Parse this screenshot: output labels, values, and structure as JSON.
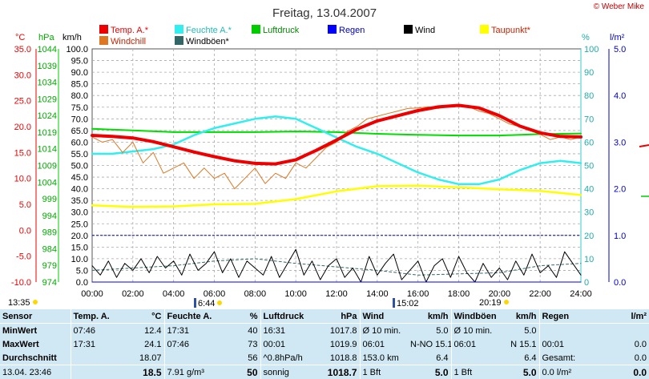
{
  "title": "Freitag, 13.04.2007",
  "copyright": "© Weber Mike",
  "colors": {
    "temp": "#ee0000",
    "windchill": "#dd7722",
    "humidity": "#33eeee",
    "pressure": "#00dd00",
    "rain": "#0000ff",
    "wind": "#000000",
    "gust": "#336666",
    "dewpoint": "#ffff00"
  },
  "legend": [
    {
      "label": "Temp. A.*",
      "color": "#ee0000",
      "text_color": "#ee0000"
    },
    {
      "label": "Feuchte A.*",
      "color": "#33eeee",
      "text_color": "#22bbbb"
    },
    {
      "label": "Luftdruck",
      "color": "#00cc00",
      "text_color": "#008800"
    },
    {
      "label": "Regen",
      "color": "#0000ff",
      "text_color": "#0000cc"
    },
    {
      "label": "Wind",
      "color": "#000000",
      "text_color": "#000000"
    },
    {
      "label": "Taupunkt*",
      "color": "#ffff00",
      "text_color": "#cc2200"
    },
    {
      "label": "Windchill",
      "color": "#dd7722",
      "text_color": "#cc2200"
    },
    {
      "label": "Windböen*",
      "color": "#336666",
      "text_color": "#000000"
    }
  ],
  "axes": {
    "temp_unit": "°C",
    "pressure_unit": "hPa",
    "wind_unit": "km/h",
    "humidity_unit": "%",
    "rain_unit": "l/m²"
  },
  "markers": {
    "sunrise": "6:44",
    "sunset": "20:19",
    "moonrise": "13:35",
    "moonset": "15:02"
  },
  "chart_data": {
    "type": "line",
    "title": "Freitag, 13.04.2007",
    "x_ticks": [
      "00:00",
      "02:00",
      "04:00",
      "06:00",
      "08:00",
      "10:00",
      "12:00",
      "14:00",
      "16:00",
      "18:00",
      "20:00",
      "22:00",
      "24:00"
    ],
    "x_range": [
      0,
      24
    ],
    "axes_ticks": {
      "temp": [
        "35.0",
        "30.0",
        "25.0",
        "20.0",
        "15.0",
        "10.0",
        "5.0",
        "0.0",
        "-5.0",
        "-10.0"
      ],
      "pressure": [
        "1044",
        "1039",
        "1034",
        "1029",
        "1024",
        "1019",
        "1014",
        "1009",
        "1004",
        "999",
        "994",
        "989",
        "984",
        "979",
        "974"
      ],
      "wind": [
        "100.0",
        "95.0",
        "90.0",
        "85.0",
        "80.0",
        "75.0",
        "70.0",
        "65.0",
        "60.0",
        "55.0",
        "50.0",
        "45.0",
        "40.0",
        "35.0",
        "30.0",
        "25.0",
        "20.0",
        "15.0",
        "10.0",
        "5.0",
        "0.0"
      ],
      "humidity": [
        "100",
        "90",
        "80",
        "70",
        "60",
        "50",
        "40",
        "30",
        "20",
        "10",
        "0"
      ],
      "rain": [
        "5.0",
        "4.0",
        "3.0",
        "2.0",
        "1.0",
        "0.0"
      ]
    },
    "ylim": {
      "temp": [
        -10,
        35
      ],
      "pressure": [
        974,
        1044
      ],
      "wind": [
        0,
        100
      ],
      "humidity": [
        0,
        100
      ],
      "rain": [
        0,
        5
      ]
    },
    "series": [
      {
        "name": "Temp. A.*",
        "axis": "temp",
        "x": [
          0,
          1,
          2,
          3,
          4,
          5,
          6,
          7,
          8,
          9,
          10,
          11,
          12,
          13,
          14,
          15,
          16,
          17,
          18,
          19,
          20,
          21,
          22,
          23,
          24
        ],
        "values": [
          18.3,
          18.1,
          17.8,
          17.1,
          16.1,
          15.1,
          14.2,
          13.4,
          12.9,
          12.8,
          13.6,
          15.4,
          17.4,
          19.5,
          21.1,
          22.1,
          23.1,
          23.8,
          24.1,
          23.6,
          22.1,
          20.1,
          18.8,
          18.1,
          18.0
        ]
      },
      {
        "name": "Windchill",
        "axis": "temp",
        "x": [
          0,
          0.5,
          1,
          1.5,
          2,
          2.5,
          3,
          3.5,
          4,
          4.5,
          5,
          5.5,
          6,
          6.5,
          7,
          7.5,
          8,
          8.5,
          9,
          9.5,
          10,
          10.5,
          11,
          11.5,
          12,
          12.5,
          13,
          13.5,
          14,
          14.5,
          15,
          15.5,
          16,
          16.5,
          17,
          17.5,
          18,
          18.5,
          19,
          19.5,
          20,
          20.5,
          21,
          21.5,
          22,
          22.5,
          23,
          23.5,
          24
        ],
        "values": [
          18.0,
          17.0,
          17.5,
          15.0,
          17.0,
          13.0,
          15.0,
          11.0,
          12.0,
          13.0,
          10.0,
          12.0,
          10.0,
          11.0,
          8.0,
          10.0,
          12.0,
          9.0,
          11.0,
          10.0,
          13.0,
          12.0,
          14.0,
          16.0,
          17.0,
          19.0,
          20.0,
          21.5,
          22.0,
          22.5,
          23.0,
          23.5,
          23.6,
          23.8,
          23.5,
          24.0,
          24.1,
          23.8,
          23.0,
          22.5,
          21.5,
          20.5,
          20.0,
          19.5,
          18.5,
          17.5,
          18.0,
          17.5,
          18.0
        ]
      },
      {
        "name": "Feuchte A.*",
        "axis": "humidity",
        "x": [
          0,
          1,
          2,
          3,
          4,
          5,
          6,
          7,
          8,
          9,
          10,
          11,
          12,
          13,
          14,
          15,
          16,
          17,
          18,
          19,
          20,
          21,
          22,
          23,
          24
        ],
        "values": [
          55,
          55,
          56,
          57,
          59,
          63,
          66,
          68,
          70,
          71,
          70,
          66,
          62,
          58,
          55,
          51,
          47,
          44,
          42,
          42,
          44,
          48,
          51,
          52,
          51
        ]
      },
      {
        "name": "Luftdruck",
        "axis": "pressure",
        "x": [
          0,
          2,
          4,
          6,
          8,
          10,
          12,
          14,
          16,
          18,
          20,
          22,
          24
        ],
        "values": [
          1020.0,
          1019.5,
          1019.0,
          1019.0,
          1019.0,
          1019.2,
          1019.0,
          1018.5,
          1018.2,
          1018.0,
          1018.0,
          1018.4,
          1018.6
        ]
      },
      {
        "name": "Taupunkt*",
        "axis": "temp",
        "x": [
          0,
          2,
          4,
          6,
          8,
          10,
          12,
          14,
          16,
          18,
          20,
          22,
          24
        ],
        "values": [
          4.8,
          4.5,
          4.6,
          5.0,
          5.1,
          6.0,
          7.5,
          8.5,
          8.6,
          8.3,
          7.9,
          7.6,
          6.8
        ]
      },
      {
        "name": "Wind",
        "axis": "wind",
        "x": [
          0,
          0.4,
          0.8,
          1.2,
          1.6,
          2,
          2.4,
          2.8,
          3.2,
          3.6,
          4,
          4.4,
          4.8,
          5.2,
          5.6,
          6,
          6.4,
          6.8,
          7.2,
          7.6,
          8,
          8.4,
          8.8,
          9.2,
          9.6,
          10,
          10.4,
          10.8,
          11.2,
          11.6,
          12,
          12.4,
          12.8,
          13.2,
          13.6,
          14,
          14.4,
          14.8,
          15.2,
          15.6,
          16,
          16.4,
          16.8,
          17.2,
          17.6,
          18,
          18.4,
          18.8,
          19.2,
          19.6,
          20,
          20.4,
          20.8,
          21.2,
          21.6,
          22,
          22.4,
          22.8,
          23.2,
          23.6,
          24
        ],
        "values": [
          7,
          3,
          9,
          2,
          8,
          5,
          10,
          4,
          11,
          6,
          9,
          3,
          12,
          5,
          8,
          13,
          4,
          10,
          2,
          9,
          6,
          3,
          11,
          2,
          8,
          14,
          3,
          9,
          1,
          7,
          10,
          2,
          6,
          0,
          11,
          3,
          8,
          12,
          1,
          5,
          9,
          0,
          7,
          10,
          2,
          11,
          4,
          0,
          8,
          2,
          6,
          1,
          9,
          3,
          12,
          4,
          7,
          2,
          13,
          8,
          3
        ]
      },
      {
        "name": "Windböen*",
        "axis": "wind",
        "x": [
          0,
          2,
          4,
          6,
          8,
          10,
          12,
          14,
          16,
          18,
          20,
          22,
          24
        ],
        "values": [
          5.0,
          6.0,
          7.0,
          9.0,
          10.0,
          8.0,
          6.5,
          5.0,
          3.0,
          3.5,
          4.0,
          7.0,
          8.0
        ]
      },
      {
        "name": "Regen",
        "axis": "rain",
        "x": [
          0,
          24
        ],
        "values": [
          0.0,
          0.0
        ]
      }
    ]
  },
  "stats": {
    "header": [
      "Sensor",
      "Temp. A.",
      "°C",
      "Feuchte A.",
      "%",
      "Luftdruck",
      "hPa",
      "Wind",
      "km/h",
      "Windböen",
      "km/h",
      "Regen",
      "l/m²"
    ],
    "rows": [
      [
        "MinWert",
        "07:46",
        "12.4",
        "17:31",
        "40",
        "16:31",
        "1017.8",
        "Ø 10 min.",
        "5.0",
        "Ø 10 min.",
        "5.0",
        "",
        ""
      ],
      [
        "MaxWert",
        "17:31",
        "24.1",
        "07:46",
        "73",
        "00:01",
        "1019.9",
        "06:01",
        "N-NO 15.1",
        "06:01",
        "N 15.1",
        "00:01",
        "0.0"
      ],
      [
        "Durchschnitt",
        "",
        "18.07",
        "",
        "56",
        "^0.8hPa/h",
        "1018.8",
        "153.0 km",
        "6.4",
        "",
        "6.4",
        "Gesamt:",
        "0.0"
      ],
      [
        "13.04. 23:46",
        "",
        "18.5",
        "7.91 g/m³",
        "50",
        "sonnig",
        "1018.7",
        "1 Bft",
        "5.0",
        "1 Bft",
        "5.0",
        "0.0 l/m²",
        "0.0"
      ]
    ]
  }
}
